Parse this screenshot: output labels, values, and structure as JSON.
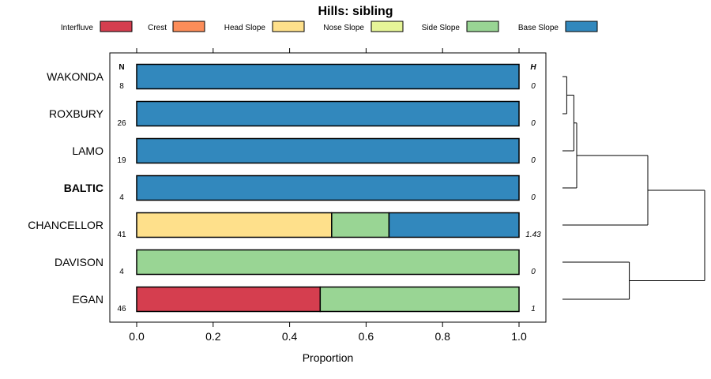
{
  "chart_data": {
    "type": "bar",
    "orientation": "horizontal",
    "stacked": true,
    "title": "Hills: sibling",
    "xlabel": "Proportion",
    "xlim": [
      0,
      1
    ],
    "xticks": [
      "0.0",
      "0.2",
      "0.4",
      "0.6",
      "0.8",
      "1.0"
    ],
    "n_header": "N",
    "h_header": "H",
    "categories": [
      "WAKONDA",
      "ROXBURY",
      "LAMO",
      "BALTIC",
      "CHANCELLOR",
      "DAVISON",
      "EGAN"
    ],
    "highlighted": "BALTIC",
    "n": [
      "8",
      "26",
      "19",
      "4",
      "41",
      "4",
      "46"
    ],
    "h": [
      "0",
      "0",
      "0",
      "0",
      "1.43",
      "0",
      "1"
    ],
    "legend": [
      {
        "name": "Interfluve",
        "color": "#d53e4f"
      },
      {
        "name": "Crest",
        "color": "#fc8d59"
      },
      {
        "name": "Head Slope",
        "color": "#fee08b"
      },
      {
        "name": "Nose Slope",
        "color": "#e6f598"
      },
      {
        "name": "Side Slope",
        "color": "#99d594"
      },
      {
        "name": "Base Slope",
        "color": "#3288bd"
      }
    ],
    "series": [
      {
        "name": "Interfluve",
        "values": [
          0,
          0,
          0,
          0,
          0,
          0,
          0.48
        ]
      },
      {
        "name": "Crest",
        "values": [
          0,
          0,
          0,
          0,
          0,
          0,
          0
        ]
      },
      {
        "name": "Head Slope",
        "values": [
          0,
          0,
          0,
          0,
          0.51,
          0,
          0
        ]
      },
      {
        "name": "Nose Slope",
        "values": [
          0,
          0,
          0,
          0,
          0,
          0,
          0
        ]
      },
      {
        "name": "Side Slope",
        "values": [
          0,
          0,
          0,
          0,
          0.15,
          1,
          0.52
        ]
      },
      {
        "name": "Base Slope",
        "values": [
          1,
          1,
          1,
          1,
          0.34,
          0,
          0
        ]
      }
    ],
    "dendrogram": {
      "type": "hierarchical-clustering",
      "merges": [
        {
          "members": [
            "WAKONDA",
            "ROXBURY"
          ],
          "height": 0.03
        },
        {
          "members": [
            "WAKONDA",
            "ROXBURY",
            "LAMO"
          ],
          "height": 0.08
        },
        {
          "members": [
            "WAKONDA",
            "ROXBURY",
            "LAMO",
            "BALTIC"
          ],
          "height": 0.1
        },
        {
          "members": [
            "WAKONDA",
            "ROXBURY",
            "LAMO",
            "BALTIC",
            "CHANCELLOR"
          ],
          "height": 0.6
        },
        {
          "members": [
            "DAVISON",
            "EGAN"
          ],
          "height": 0.47
        },
        {
          "members": [
            "ALL"
          ],
          "height": 1.0
        }
      ]
    }
  }
}
